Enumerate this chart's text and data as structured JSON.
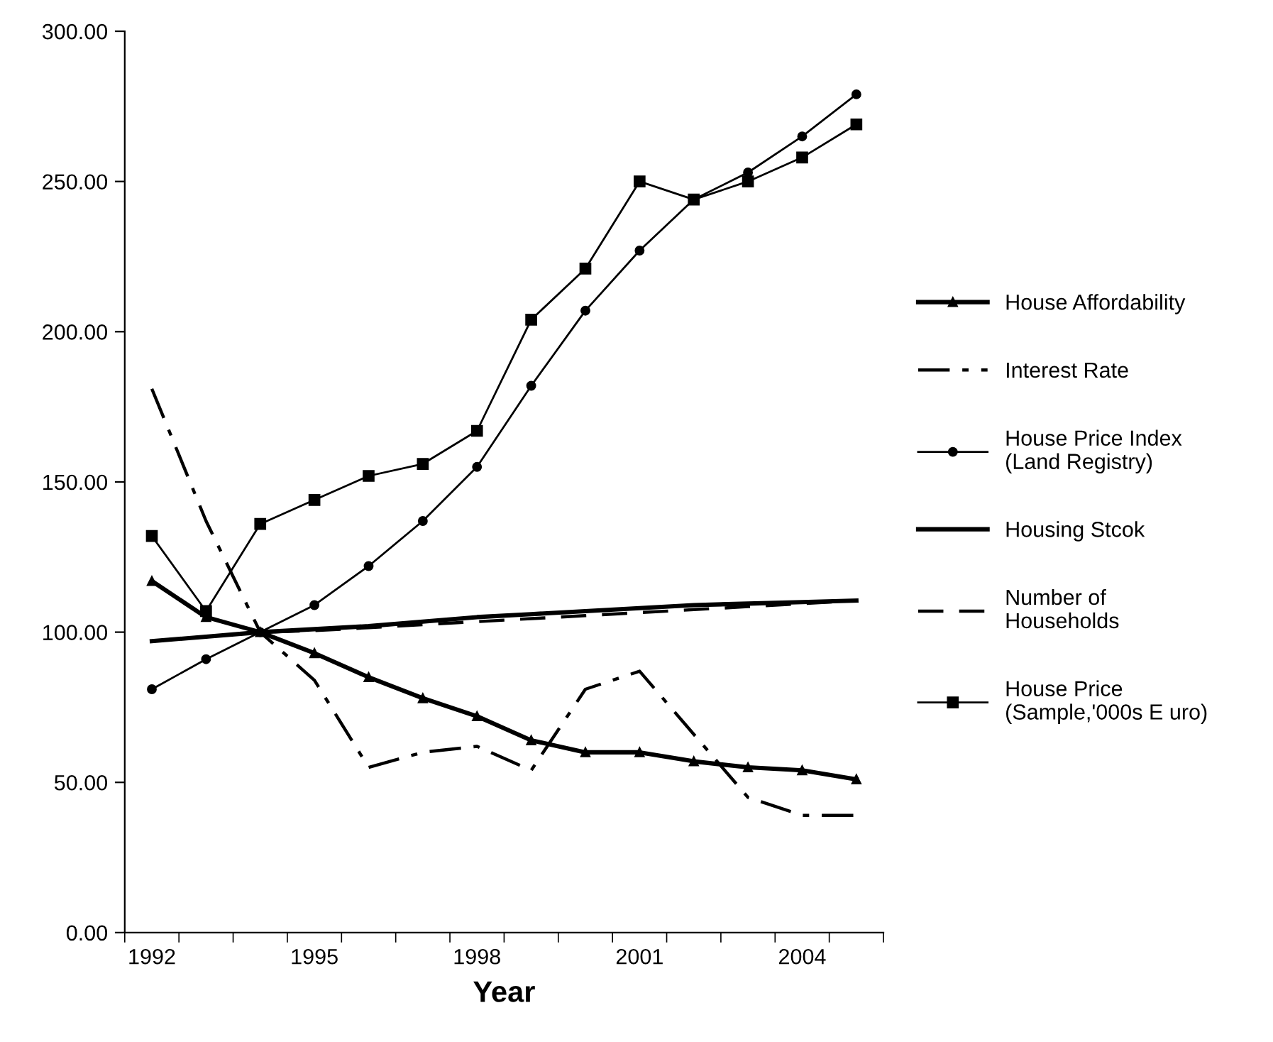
{
  "chart_data": {
    "type": "line",
    "xlabel": "Year",
    "categories": [
      "1992",
      null,
      null,
      "1995",
      null,
      null,
      "1998",
      null,
      null,
      "2001",
      null,
      null,
      "2004",
      null
    ],
    "ylim": [
      0,
      300
    ],
    "yticks": [
      {
        "value": 0,
        "label": "0.00"
      },
      {
        "value": 50,
        "label": "50.00"
      },
      {
        "value": 100,
        "label": "100.00"
      },
      {
        "value": 150,
        "label": "150.00"
      },
      {
        "value": 200,
        "label": "200.00"
      },
      {
        "value": 250,
        "label": "250.00"
      },
      {
        "value": 300,
        "label": "300.00"
      }
    ],
    "grid": false,
    "legend": "right",
    "series": [
      {
        "name": "House Affordability",
        "color": "#000000",
        "marker": "triangle",
        "line_style": "solid",
        "values": [
          117,
          105,
          100,
          93,
          85,
          78,
          72,
          64,
          60,
          60,
          57,
          55,
          54,
          51
        ]
      },
      {
        "name": "Interest Rate",
        "color": "#000000",
        "marker": "none",
        "line_style": "dashdot",
        "values": [
          181,
          137,
          100,
          84,
          55,
          60,
          62,
          54,
          81,
          87,
          66,
          45,
          39,
          39
        ]
      },
      {
        "name": "House Price Index\n(Land Registry)",
        "color": "#000000",
        "marker": "circle",
        "line_style": "solid",
        "values": [
          81,
          91,
          100,
          109,
          122,
          137,
          155,
          182,
          207,
          227,
          244,
          253,
          265,
          279
        ]
      },
      {
        "name": "Housing Stcok",
        "color": "#000000",
        "marker": "none",
        "line_style": "solid",
        "values": [
          97,
          98.5,
          100,
          101,
          102,
          103.5,
          105,
          106,
          107,
          108,
          109,
          109.5,
          110,
          110.5
        ]
      },
      {
        "name": "Number of\nHouseholds",
        "color": "#000000",
        "marker": "none",
        "line_style": "dashed",
        "values": [
          97,
          98.5,
          100,
          100.5,
          101.5,
          102.5,
          103.5,
          104.5,
          105.5,
          106.5,
          107.5,
          108.5,
          109.5,
          110.5
        ]
      },
      {
        "name": "House Price\n(Sample,'000s E uro)",
        "color": "#000000",
        "marker": "square",
        "line_style": "solid",
        "values": [
          132,
          107,
          136,
          144,
          152,
          156,
          167,
          204,
          221,
          250,
          244,
          250,
          258,
          269
        ]
      }
    ]
  }
}
